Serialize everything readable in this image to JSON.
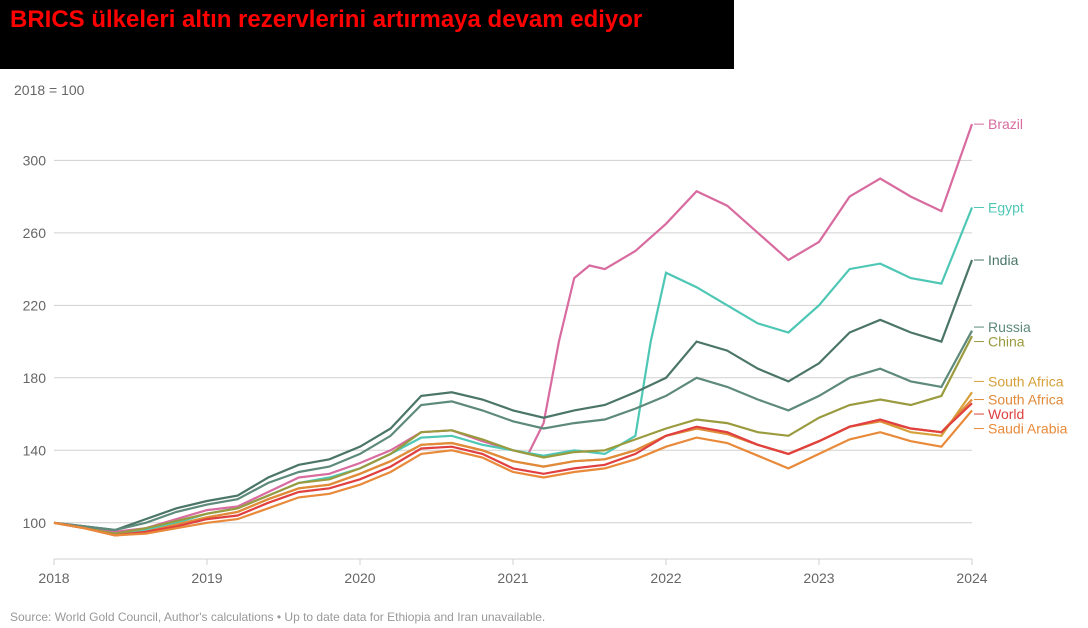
{
  "title": "BRICS ülkeleri altın rezervlerini artırmaya devam ediyor",
  "subtitle": "2018 = 100",
  "source": "Source: World Gold Council, Author's calculations • Up to date data for Ethiopia and Iran unavailable.",
  "chart": {
    "type": "line",
    "xlim": [
      2018,
      2024
    ],
    "ylim": [
      80,
      330
    ],
    "xticks": [
      2018,
      2019,
      2020,
      2021,
      2022,
      2023,
      2024
    ],
    "yticks": [
      100,
      140,
      180,
      220,
      260,
      300
    ],
    "background_color": "#ffffff",
    "grid_color": "#d0d0d0",
    "axis_color": "#666666",
    "axis_font_size": 14,
    "series": [
      {
        "name": "Brazil",
        "color": "#d86b9f",
        "label_y": 320,
        "points": [
          [
            2018.0,
            100
          ],
          [
            2018.2,
            98
          ],
          [
            2018.4,
            95
          ],
          [
            2018.6,
            97
          ],
          [
            2018.8,
            102
          ],
          [
            2019.0,
            107
          ],
          [
            2019.2,
            109
          ],
          [
            2019.4,
            117
          ],
          [
            2019.6,
            125
          ],
          [
            2019.8,
            127
          ],
          [
            2020.0,
            133
          ],
          [
            2020.2,
            140
          ],
          [
            2020.4,
            150
          ],
          [
            2020.6,
            151
          ],
          [
            2020.8,
            145
          ],
          [
            2021.0,
            140
          ],
          [
            2021.1,
            138
          ],
          [
            2021.2,
            155
          ],
          [
            2021.3,
            200
          ],
          [
            2021.4,
            235
          ],
          [
            2021.5,
            242
          ],
          [
            2021.6,
            240
          ],
          [
            2021.8,
            250
          ],
          [
            2022.0,
            265
          ],
          [
            2022.2,
            283
          ],
          [
            2022.4,
            275
          ],
          [
            2022.6,
            260
          ],
          [
            2022.8,
            245
          ],
          [
            2023.0,
            255
          ],
          [
            2023.2,
            280
          ],
          [
            2023.4,
            290
          ],
          [
            2023.6,
            280
          ],
          [
            2023.8,
            272
          ],
          [
            2024.0,
            320
          ]
        ]
      },
      {
        "name": "Egypt",
        "color": "#4ec7b5",
        "label_y": 274,
        "points": [
          [
            2018.0,
            100
          ],
          [
            2018.2,
            97
          ],
          [
            2018.4,
            94
          ],
          [
            2018.6,
            96
          ],
          [
            2018.8,
            100
          ],
          [
            2019.0,
            105
          ],
          [
            2019.2,
            108
          ],
          [
            2019.4,
            115
          ],
          [
            2019.6,
            122
          ],
          [
            2019.8,
            125
          ],
          [
            2020.0,
            130
          ],
          [
            2020.2,
            138
          ],
          [
            2020.4,
            147
          ],
          [
            2020.6,
            148
          ],
          [
            2020.8,
            143
          ],
          [
            2021.0,
            140
          ],
          [
            2021.2,
            137
          ],
          [
            2021.4,
            140
          ],
          [
            2021.6,
            138
          ],
          [
            2021.8,
            148
          ],
          [
            2021.9,
            200
          ],
          [
            2022.0,
            238
          ],
          [
            2022.2,
            230
          ],
          [
            2022.4,
            220
          ],
          [
            2022.6,
            210
          ],
          [
            2022.8,
            205
          ],
          [
            2023.0,
            220
          ],
          [
            2023.2,
            240
          ],
          [
            2023.4,
            243
          ],
          [
            2023.6,
            235
          ],
          [
            2023.8,
            232
          ],
          [
            2024.0,
            274
          ]
        ]
      },
      {
        "name": "India",
        "color": "#4a7568",
        "label_y": 245,
        "points": [
          [
            2018.0,
            100
          ],
          [
            2018.2,
            98
          ],
          [
            2018.4,
            96
          ],
          [
            2018.6,
            102
          ],
          [
            2018.8,
            108
          ],
          [
            2019.0,
            112
          ],
          [
            2019.2,
            115
          ],
          [
            2019.4,
            125
          ],
          [
            2019.6,
            132
          ],
          [
            2019.8,
            135
          ],
          [
            2020.0,
            142
          ],
          [
            2020.2,
            152
          ],
          [
            2020.4,
            170
          ],
          [
            2020.6,
            172
          ],
          [
            2020.8,
            168
          ],
          [
            2021.0,
            162
          ],
          [
            2021.2,
            158
          ],
          [
            2021.4,
            162
          ],
          [
            2021.6,
            165
          ],
          [
            2021.8,
            172
          ],
          [
            2022.0,
            180
          ],
          [
            2022.2,
            200
          ],
          [
            2022.4,
            195
          ],
          [
            2022.6,
            185
          ],
          [
            2022.8,
            178
          ],
          [
            2023.0,
            188
          ],
          [
            2023.2,
            205
          ],
          [
            2023.4,
            212
          ],
          [
            2023.6,
            205
          ],
          [
            2023.8,
            200
          ],
          [
            2024.0,
            245
          ]
        ]
      },
      {
        "name": "Russia",
        "color": "#5d8a7a",
        "label_y": 208,
        "points": [
          [
            2018.0,
            100
          ],
          [
            2018.2,
            98
          ],
          [
            2018.4,
            96
          ],
          [
            2018.6,
            100
          ],
          [
            2018.8,
            106
          ],
          [
            2019.0,
            110
          ],
          [
            2019.2,
            113
          ],
          [
            2019.4,
            122
          ],
          [
            2019.6,
            128
          ],
          [
            2019.8,
            131
          ],
          [
            2020.0,
            138
          ],
          [
            2020.2,
            148
          ],
          [
            2020.4,
            165
          ],
          [
            2020.6,
            167
          ],
          [
            2020.8,
            162
          ],
          [
            2021.0,
            156
          ],
          [
            2021.2,
            152
          ],
          [
            2021.4,
            155
          ],
          [
            2021.6,
            157
          ],
          [
            2021.8,
            163
          ],
          [
            2022.0,
            170
          ],
          [
            2022.2,
            180
          ],
          [
            2022.4,
            175
          ],
          [
            2022.6,
            168
          ],
          [
            2022.8,
            162
          ],
          [
            2023.0,
            170
          ],
          [
            2023.2,
            180
          ],
          [
            2023.4,
            185
          ],
          [
            2023.6,
            178
          ],
          [
            2023.8,
            175
          ],
          [
            2024.0,
            206
          ]
        ]
      },
      {
        "name": "China",
        "color": "#9a9a3e",
        "label_y": 200,
        "points": [
          [
            2018.0,
            100
          ],
          [
            2018.2,
            97
          ],
          [
            2018.4,
            94
          ],
          [
            2018.6,
            97
          ],
          [
            2018.8,
            101
          ],
          [
            2019.0,
            105
          ],
          [
            2019.2,
            108
          ],
          [
            2019.4,
            115
          ],
          [
            2019.6,
            122
          ],
          [
            2019.8,
            124
          ],
          [
            2020.0,
            130
          ],
          [
            2020.2,
            138
          ],
          [
            2020.4,
            150
          ],
          [
            2020.6,
            151
          ],
          [
            2020.8,
            146
          ],
          [
            2021.0,
            140
          ],
          [
            2021.2,
            136
          ],
          [
            2021.4,
            139
          ],
          [
            2021.6,
            140
          ],
          [
            2021.8,
            146
          ],
          [
            2022.0,
            152
          ],
          [
            2022.2,
            157
          ],
          [
            2022.4,
            155
          ],
          [
            2022.6,
            150
          ],
          [
            2022.8,
            148
          ],
          [
            2023.0,
            158
          ],
          [
            2023.2,
            165
          ],
          [
            2023.4,
            168
          ],
          [
            2023.6,
            165
          ],
          [
            2023.8,
            170
          ],
          [
            2024.0,
            203
          ]
        ]
      },
      {
        "name": "South Africa",
        "color": "#d6a03a",
        "label_y": 178,
        "points": [
          [
            2018.0,
            100
          ],
          [
            2018.2,
            97
          ],
          [
            2018.4,
            93
          ],
          [
            2018.6,
            95
          ],
          [
            2018.8,
            99
          ],
          [
            2019.0,
            103
          ],
          [
            2019.2,
            106
          ],
          [
            2019.4,
            113
          ],
          [
            2019.6,
            119
          ],
          [
            2019.8,
            121
          ],
          [
            2020.0,
            127
          ],
          [
            2020.2,
            134
          ],
          [
            2020.4,
            143
          ],
          [
            2020.6,
            144
          ],
          [
            2020.8,
            140
          ],
          [
            2021.0,
            134
          ],
          [
            2021.2,
            131
          ],
          [
            2021.4,
            134
          ],
          [
            2021.6,
            135
          ],
          [
            2021.8,
            140
          ],
          [
            2022.0,
            148
          ],
          [
            2022.2,
            152
          ],
          [
            2022.4,
            149
          ],
          [
            2022.6,
            143
          ],
          [
            2022.8,
            138
          ],
          [
            2023.0,
            145
          ],
          [
            2023.2,
            153
          ],
          [
            2023.4,
            156
          ],
          [
            2023.6,
            150
          ],
          [
            2023.8,
            148
          ],
          [
            2024.0,
            172
          ]
        ]
      },
      {
        "name": "South Africa",
        "color": "#e08a3a",
        "label_y": 168,
        "points": [
          [
            2018.0,
            100
          ],
          [
            2018.2,
            97
          ],
          [
            2018.4,
            93
          ],
          [
            2018.6,
            95
          ],
          [
            2018.8,
            99
          ],
          [
            2019.0,
            103
          ],
          [
            2019.2,
            106
          ],
          [
            2019.4,
            113
          ],
          [
            2019.6,
            119
          ],
          [
            2019.8,
            121
          ],
          [
            2020.0,
            127
          ],
          [
            2020.2,
            134
          ],
          [
            2020.4,
            143
          ],
          [
            2020.6,
            144
          ],
          [
            2020.8,
            140
          ],
          [
            2021.0,
            134
          ],
          [
            2021.2,
            131
          ],
          [
            2021.4,
            134
          ],
          [
            2021.6,
            135
          ],
          [
            2021.8,
            140
          ],
          [
            2022.0,
            148
          ],
          [
            2022.2,
            152
          ],
          [
            2022.4,
            149
          ],
          [
            2022.6,
            143
          ],
          [
            2022.8,
            138
          ],
          [
            2023.0,
            145
          ],
          [
            2023.2,
            153
          ],
          [
            2023.4,
            156
          ],
          [
            2023.6,
            152
          ],
          [
            2023.8,
            150
          ],
          [
            2024.0,
            168
          ]
        ]
      },
      {
        "name": "World",
        "color": "#e04040",
        "label_y": 160,
        "points": [
          [
            2018.0,
            100
          ],
          [
            2018.2,
            97
          ],
          [
            2018.4,
            93
          ],
          [
            2018.6,
            95
          ],
          [
            2018.8,
            98
          ],
          [
            2019.0,
            102
          ],
          [
            2019.2,
            104
          ],
          [
            2019.4,
            111
          ],
          [
            2019.6,
            117
          ],
          [
            2019.8,
            119
          ],
          [
            2020.0,
            124
          ],
          [
            2020.2,
            131
          ],
          [
            2020.4,
            141
          ],
          [
            2020.6,
            142
          ],
          [
            2020.8,
            138
          ],
          [
            2021.0,
            130
          ],
          [
            2021.2,
            127
          ],
          [
            2021.4,
            130
          ],
          [
            2021.6,
            132
          ],
          [
            2021.8,
            138
          ],
          [
            2022.0,
            148
          ],
          [
            2022.2,
            153
          ],
          [
            2022.4,
            150
          ],
          [
            2022.6,
            143
          ],
          [
            2022.8,
            138
          ],
          [
            2023.0,
            145
          ],
          [
            2023.2,
            153
          ],
          [
            2023.4,
            157
          ],
          [
            2023.6,
            152
          ],
          [
            2023.8,
            150
          ],
          [
            2024.0,
            166
          ]
        ]
      },
      {
        "name": "Saudi Arabia",
        "color": "#e88a3a",
        "label_y": 152,
        "points": [
          [
            2018.0,
            100
          ],
          [
            2018.2,
            97
          ],
          [
            2018.4,
            93
          ],
          [
            2018.6,
            94
          ],
          [
            2018.8,
            97
          ],
          [
            2019.0,
            100
          ],
          [
            2019.2,
            102
          ],
          [
            2019.4,
            108
          ],
          [
            2019.6,
            114
          ],
          [
            2019.8,
            116
          ],
          [
            2020.0,
            121
          ],
          [
            2020.2,
            128
          ],
          [
            2020.4,
            138
          ],
          [
            2020.6,
            140
          ],
          [
            2020.8,
            136
          ],
          [
            2021.0,
            128
          ],
          [
            2021.2,
            125
          ],
          [
            2021.4,
            128
          ],
          [
            2021.6,
            130
          ],
          [
            2021.8,
            135
          ],
          [
            2022.0,
            142
          ],
          [
            2022.2,
            147
          ],
          [
            2022.4,
            144
          ],
          [
            2022.6,
            137
          ],
          [
            2022.8,
            130
          ],
          [
            2023.0,
            138
          ],
          [
            2023.2,
            146
          ],
          [
            2023.4,
            150
          ],
          [
            2023.6,
            145
          ],
          [
            2023.8,
            142
          ],
          [
            2024.0,
            162
          ]
        ]
      }
    ]
  }
}
